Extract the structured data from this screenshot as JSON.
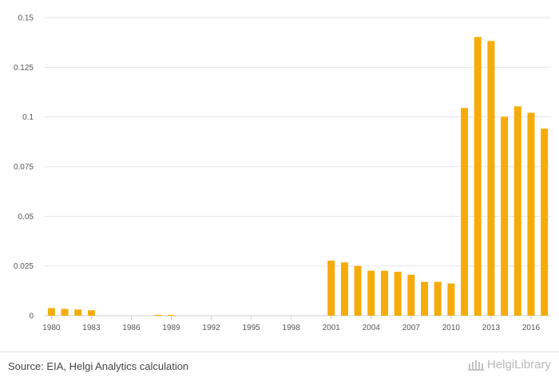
{
  "chart_data": {
    "type": "bar",
    "title": "",
    "xlabel": "",
    "ylabel": "",
    "categories": [
      "1980",
      "1981",
      "1982",
      "1983",
      "1984",
      "1985",
      "1986",
      "1987",
      "1988",
      "1989",
      "1990",
      "1991",
      "1992",
      "1993",
      "1994",
      "1995",
      "1996",
      "1997",
      "1998",
      "1999",
      "2000",
      "2001",
      "2002",
      "2003",
      "2004",
      "2005",
      "2006",
      "2007",
      "2008",
      "2009",
      "2010",
      "2011",
      "2012",
      "2013",
      "2014",
      "2015",
      "2016",
      "2017"
    ],
    "values": [
      0.0038,
      0.0034,
      0.0031,
      0.0027,
      0,
      0,
      0,
      0,
      0.0004,
      0.0004,
      0,
      0,
      0,
      0,
      0,
      0,
      0,
      0,
      0,
      0,
      0,
      0.0277,
      0.0268,
      0.025,
      0.0226,
      0.0226,
      0.0221,
      0.0206,
      0.017,
      0.017,
      0.0162,
      0.1045,
      0.1402,
      0.1382,
      0.1001,
      0.1053,
      0.1021,
      0.0941
    ],
    "x_tick_labels": [
      "1980",
      "1983",
      "1986",
      "1989",
      "1992",
      "1995",
      "1998",
      "2001",
      "2004",
      "2007",
      "2010",
      "2013",
      "2016"
    ],
    "y_tick_labels": [
      "0",
      "0.025",
      "0.05",
      "0.075",
      "0.1",
      "0.125",
      "0.15"
    ],
    "y_ticks": [
      0,
      0.025,
      0.05,
      0.075,
      0.1,
      0.125,
      0.15
    ],
    "ylim": [
      0,
      0.15
    ],
    "grid": true,
    "legend": "none",
    "bar_color": "#f5ac0a"
  },
  "footer": {
    "source": "Source: EIA, Helgi Analytics calculation",
    "logo_text": "HelgiLibrary"
  }
}
